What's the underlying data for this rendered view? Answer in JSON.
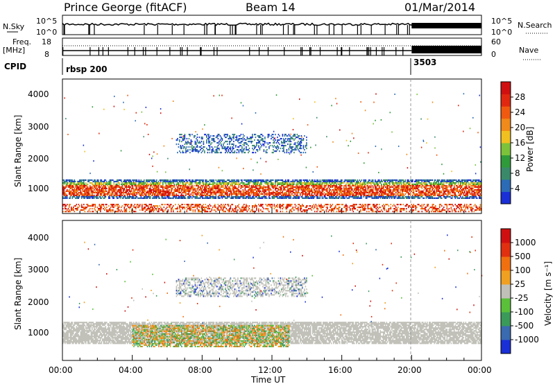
{
  "header": {
    "station": "Prince George (fitACF)",
    "beam": "Beam 14",
    "date": "01/Mar/2014"
  },
  "strip": {
    "nsky_label": "N.Sky",
    "nsky_ticks": [
      "10^5",
      "10^0"
    ],
    "nsearch_label": "N.Search",
    "nsearch_ticks": [
      "10^5",
      "10^0"
    ],
    "freq_label": "Freq.",
    "freq_unit": "[MHz]",
    "freq_ticks": [
      "18",
      "8"
    ],
    "nave_label": "Nave",
    "nave_ticks": [
      "60",
      "0"
    ],
    "cpid_label": "CPID",
    "cpid_segments": [
      "rbsp 200",
      "3503"
    ]
  },
  "power_panel": {
    "ylabel": "Slant Range [km]",
    "yticks": [
      "4000",
      "3000",
      "2000",
      "1000"
    ],
    "colorbar_label": "Power [dB]",
    "colorbar_ticks": [
      "28",
      "24",
      "20",
      "16",
      "12",
      "8",
      "4"
    ]
  },
  "velocity_panel": {
    "ylabel": "Slant Range [km]",
    "yticks": [
      "4000",
      "3000",
      "2000",
      "1000"
    ],
    "colorbar_label": "Velocity [m s⁻¹]",
    "colorbar_ticks": [
      "1000",
      "500",
      "100",
      "25",
      "-25",
      "-100",
      "-500",
      "-1000"
    ]
  },
  "x_axis": {
    "ticks": [
      "00:00",
      "04:00",
      "08:00",
      "12:00",
      "16:00",
      "20:00",
      "00:00"
    ],
    "label": "Time UT"
  },
  "colors": {
    "power_scale": [
      "#1a2fd6",
      "#2c6bb5",
      "#3a8a6a",
      "#2f9a3a",
      "#7cc23a",
      "#f0c020",
      "#f08a1a",
      "#f05a10",
      "#e02810",
      "#d01010"
    ],
    "velocity_scale": [
      "#1a2fd6",
      "#3a6ab0",
      "#3a9a5a",
      "#5ac03a",
      "#c0c0b8",
      "#f0a020",
      "#f07010",
      "#e03010",
      "#d01010"
    ],
    "ground_scatter": "#c0c0b8"
  },
  "chart_data": [
    {
      "type": "line",
      "panel": "N.Sky / N.Search",
      "x_range_hours": [
        0,
        24
      ],
      "scale": "log",
      "ylim": [
        "10^0",
        "10^5"
      ],
      "description_marker": "sky noise trace with dropouts",
      "mode_change_hour": 20.0
    },
    {
      "type": "line",
      "panel": "Freq / Nave",
      "ylim_freq_mhz": [
        8,
        18
      ],
      "ylim_nave": [
        0,
        60
      ],
      "freq_mhz_approx": 12,
      "mode_change_hour": 20.0
    },
    {
      "type": "heatmap",
      "panel": "Power",
      "x": "Time UT (hours)",
      "xlim": [
        0,
        24
      ],
      "ylim_km": [
        180,
        4600
      ],
      "zlim_db": [
        0,
        30
      ],
      "bands": [
        {
          "t_start": 0.0,
          "t_end": 24.0,
          "range_km": [
            700,
            1300
          ],
          "power_db": 26
        },
        {
          "t_start": 6.5,
          "t_end": 14.0,
          "range_km": [
            2200,
            2800
          ],
          "power_db": 6
        },
        {
          "t_start": 0.0,
          "t_end": 24.0,
          "range_km": [
            250,
            500
          ],
          "power_db": 26
        }
      ]
    },
    {
      "type": "heatmap",
      "panel": "Velocity",
      "x": "Time UT (hours)",
      "xlim": [
        0,
        24
      ],
      "ylim_km": [
        180,
        4600
      ],
      "zlim_ms": [
        -1000,
        1000
      ],
      "bands": [
        {
          "t_start": 0.0,
          "t_end": 24.0,
          "range_km": [
            700,
            1400
          ],
          "velocity_ms": 0
        },
        {
          "t_start": 4.0,
          "t_end": 13.0,
          "range_km": [
            600,
            1300
          ],
          "velocity_ms": -150
        },
        {
          "t_start": 6.5,
          "t_end": 14.0,
          "range_km": [
            2200,
            2800
          ],
          "velocity_ms": 0
        }
      ]
    }
  ]
}
